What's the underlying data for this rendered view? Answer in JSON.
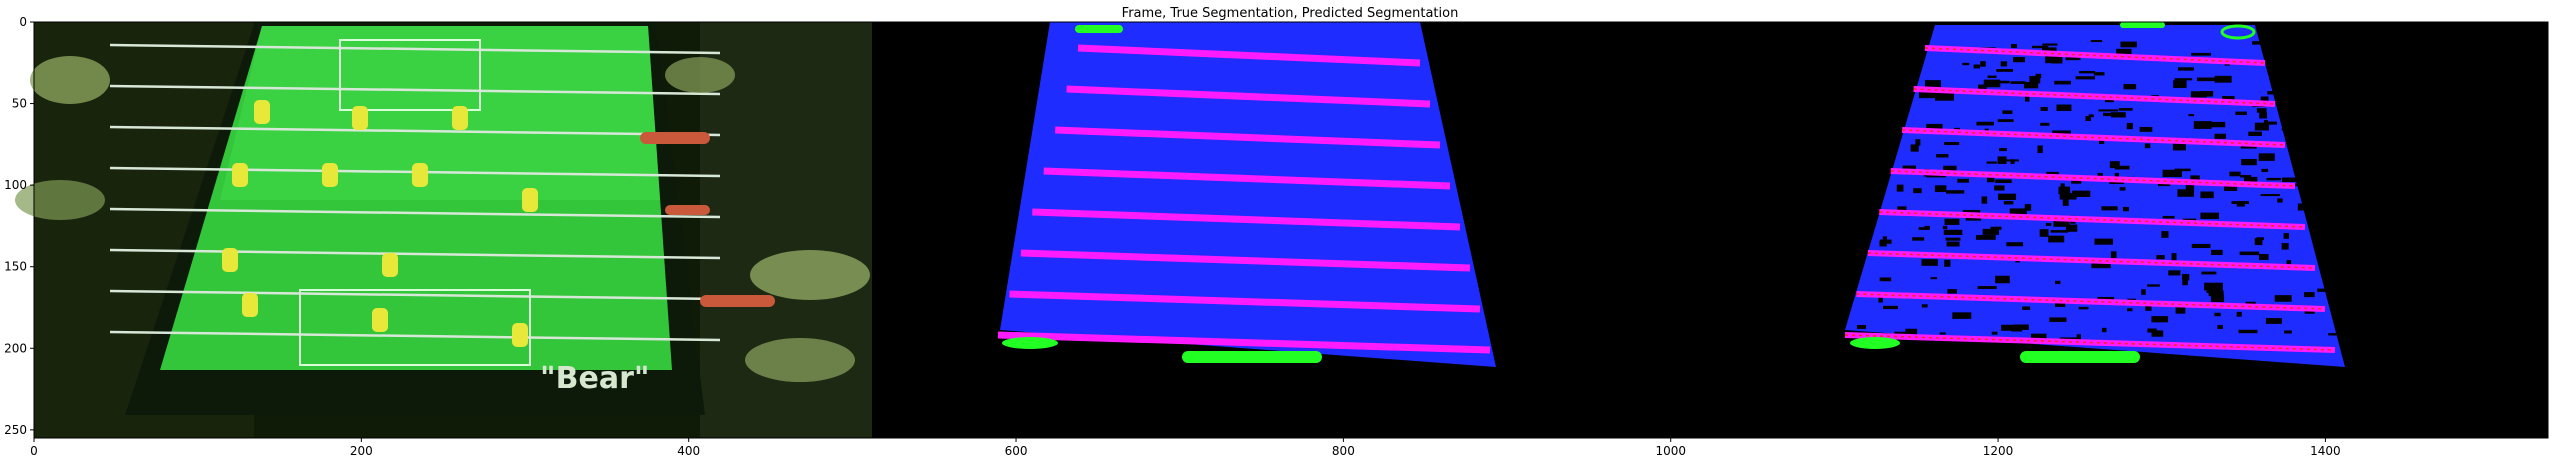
{
  "figure": {
    "title": "Frame, True Segmentation, Predicted Segmentation",
    "x_ticks": [
      "0",
      "200",
      "400",
      "600",
      "800",
      "1000",
      "1200",
      "1400"
    ],
    "y_ticks": [
      "0",
      "50",
      "100",
      "150",
      "200",
      "250"
    ]
  },
  "panels": [
    {
      "id": "frame",
      "content": "foosball table camera frame",
      "table_text": "\"Bear\""
    },
    {
      "id": "true_segmentation",
      "content": "ground-truth segmentation mask"
    },
    {
      "id": "predicted_segmentation",
      "content": "predicted segmentation mask"
    }
  ],
  "colors": {
    "field": "#1f2cff",
    "rods": "#ff1bff",
    "players": "#22ff22",
    "background": "#000000"
  }
}
